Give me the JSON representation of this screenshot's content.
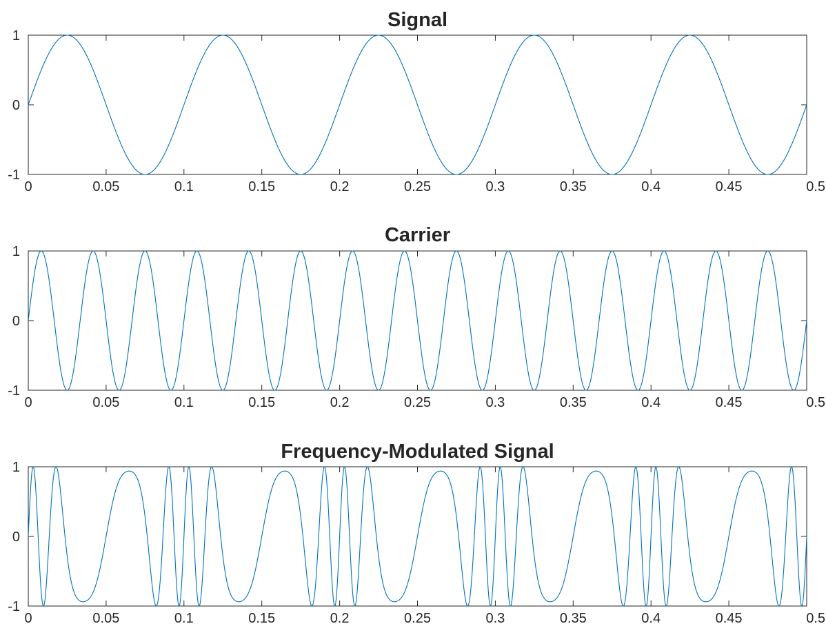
{
  "chart_data": [
    {
      "type": "line",
      "title": "Signal",
      "xlabel": "",
      "ylabel": "",
      "xlim": [
        0,
        0.5
      ],
      "ylim": [
        -1,
        1
      ],
      "x_ticks": [
        "0",
        "0.05",
        "0.1",
        "0.15",
        "0.2",
        "0.25",
        "0.3",
        "0.35",
        "0.4",
        "0.45",
        "0.5"
      ],
      "y_ticks": [
        "-1",
        "0",
        "1"
      ],
      "grid": false,
      "line_color": "#0072bd",
      "series": [
        {
          "function": "sin(2*pi*f*t)",
          "frequency_hz": 10,
          "amplitude": 1
        }
      ]
    },
    {
      "type": "line",
      "title": "Carrier",
      "xlabel": "",
      "ylabel": "",
      "xlim": [
        0,
        0.5
      ],
      "ylim": [
        -1,
        1
      ],
      "x_ticks": [
        "0",
        "0.05",
        "0.1",
        "0.15",
        "0.2",
        "0.25",
        "0.3",
        "0.35",
        "0.4",
        "0.45",
        "0.5"
      ],
      "y_ticks": [
        "-1",
        "0",
        "1"
      ],
      "grid": false,
      "line_color": "#0072bd",
      "series": [
        {
          "function": "sin(2*pi*f*t)",
          "frequency_hz": 30,
          "amplitude": 1
        }
      ]
    },
    {
      "type": "line",
      "title": "Frequency-Modulated Signal",
      "xlabel": "",
      "ylabel": "",
      "xlim": [
        0,
        0.5
      ],
      "ylim": [
        -1,
        1
      ],
      "x_ticks": [
        "0",
        "0.05",
        "0.1",
        "0.15",
        "0.2",
        "0.25",
        "0.3",
        "0.35",
        "0.4",
        "0.45",
        "0.5"
      ],
      "y_ticks": [
        "-1",
        "0",
        "1"
      ],
      "grid": false,
      "line_color": "#0072bd",
      "series": [
        {
          "function": "sin(2*pi*fc*t + beta*sin(2*pi*fm*t))",
          "carrier_frequency_hz": 30,
          "modulating_frequency_hz": 10,
          "frequency_deviation_hz": 50,
          "amplitude": 1
        }
      ]
    }
  ]
}
